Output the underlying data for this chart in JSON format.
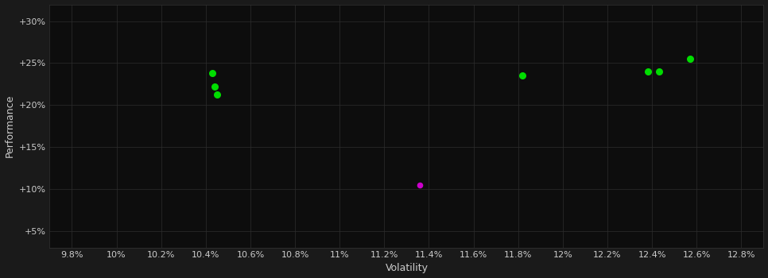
{
  "background_color": "#1a1a1a",
  "plot_bg_color": "#0d0d0d",
  "grid_color": "#2d2d2d",
  "text_color": "#cccccc",
  "xlabel": "Volatility",
  "ylabel": "Performance",
  "x_ticks": [
    9.8,
    10.0,
    10.2,
    10.4,
    10.6,
    10.8,
    11.0,
    11.2,
    11.4,
    11.6,
    11.8,
    12.0,
    12.2,
    12.4,
    12.6,
    12.8
  ],
  "x_tick_labels": [
    "9.8%",
    "10%",
    "10.2%",
    "10.4%",
    "10.6%",
    "10.8%",
    "11%",
    "11.2%",
    "11.4%",
    "11.6%",
    "11.8%",
    "12%",
    "12.2%",
    "12.4%",
    "12.6%",
    "12.8%"
  ],
  "y_ticks": [
    5,
    10,
    15,
    20,
    25,
    30
  ],
  "y_tick_labels": [
    "+5%",
    "+10%",
    "+15%",
    "+20%",
    "+25%",
    "+30%"
  ],
  "xlim": [
    9.7,
    12.9
  ],
  "ylim": [
    3,
    32
  ],
  "green_points": [
    [
      10.43,
      23.8
    ],
    [
      10.44,
      22.2
    ],
    [
      10.45,
      21.3
    ],
    [
      11.82,
      23.5
    ],
    [
      12.38,
      24.0
    ],
    [
      12.43,
      24.0
    ],
    [
      12.57,
      25.5
    ]
  ],
  "magenta_points": [
    [
      11.36,
      10.5
    ]
  ],
  "green_color": "#00dd00",
  "magenta_color": "#cc00cc",
  "marker_size": 30,
  "marker_size_magenta": 20,
  "font_size_ticks": 8,
  "font_size_labels": 9
}
